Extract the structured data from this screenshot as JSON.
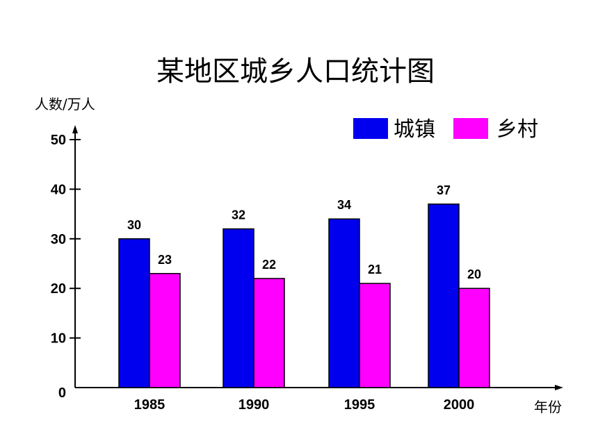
{
  "chart_data": {
    "type": "bar",
    "title": "某地区城乡人口统计图",
    "ylabel": "人数/万人",
    "xlabel": "年份",
    "categories": [
      "1985",
      "1990",
      "1995",
      "2000"
    ],
    "series": [
      {
        "name": "城镇",
        "color": "#0000ee",
        "values": [
          30,
          32,
          34,
          37
        ]
      },
      {
        "name": "乡村",
        "color": "#ff00ff",
        "values": [
          23,
          22,
          21,
          20
        ]
      }
    ],
    "ylim": [
      0,
      50
    ],
    "yticks": [
      0,
      10,
      20,
      30,
      40,
      50
    ],
    "grid": false,
    "legend": "top-right"
  }
}
